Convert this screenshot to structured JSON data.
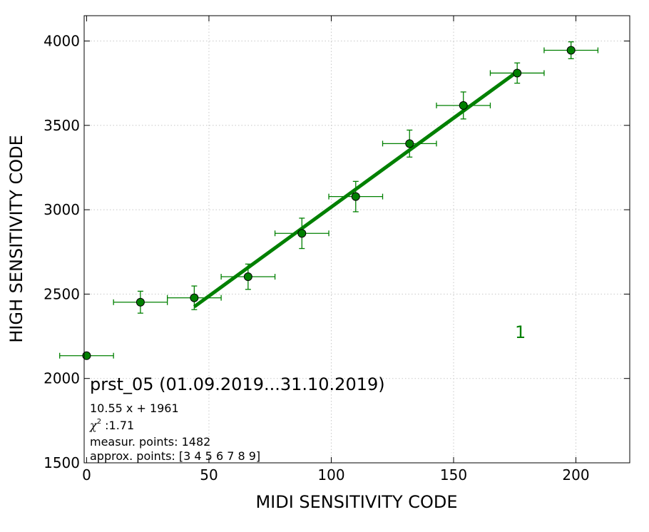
{
  "chart_data": {
    "type": "scatter",
    "xlabel": "MIDI SENSITIVITY CODE",
    "ylabel": "HIGH SENSITIVITY CODE",
    "xlim": [
      -1,
      222
    ],
    "ylim": [
      1500,
      4150
    ],
    "xticks": [
      0,
      50,
      100,
      150,
      200
    ],
    "yticks": [
      1500,
      2000,
      2500,
      3000,
      3500,
      4000
    ],
    "grid": true,
    "colors": {
      "data": "#008000",
      "marker_fill": "#008000",
      "marker_edge": "#000000",
      "fit": "#008000"
    },
    "points": [
      {
        "x": 0,
        "y": 2135,
        "xerr": 11,
        "yerr": 0
      },
      {
        "x": 22,
        "y": 2452,
        "xerr": 11,
        "yerr": 65
      },
      {
        "x": 44,
        "y": 2478,
        "xerr": 11,
        "yerr": 70
      },
      {
        "x": 66,
        "y": 2603,
        "xerr": 11,
        "yerr": 75
      },
      {
        "x": 88,
        "y": 2860,
        "xerr": 11,
        "yerr": 90
      },
      {
        "x": 110,
        "y": 3078,
        "xerr": 11,
        "yerr": 90
      },
      {
        "x": 132,
        "y": 3392,
        "xerr": 11,
        "yerr": 80
      },
      {
        "x": 154,
        "y": 3618,
        "xerr": 11,
        "yerr": 80
      },
      {
        "x": 176,
        "y": 3810,
        "xerr": 11,
        "yerr": 60
      },
      {
        "x": 198,
        "y": 3945,
        "xerr": 11,
        "yerr": 50
      }
    ],
    "fit_line": {
      "slope": 10.55,
      "intercept": 1961,
      "x_range": [
        44,
        176
      ]
    },
    "series_label": "1",
    "annotations": {
      "title": "prst_05 (01.09.2019...31.10.2019)",
      "equation": "10.55 x + 1961",
      "chi_symbol": "χ",
      "chi_power": "2",
      "chi_value": " :1.71",
      "measured": "measur. points: 1482",
      "approx": "approx. points: [3 4 5 6 7 8 9]"
    }
  }
}
